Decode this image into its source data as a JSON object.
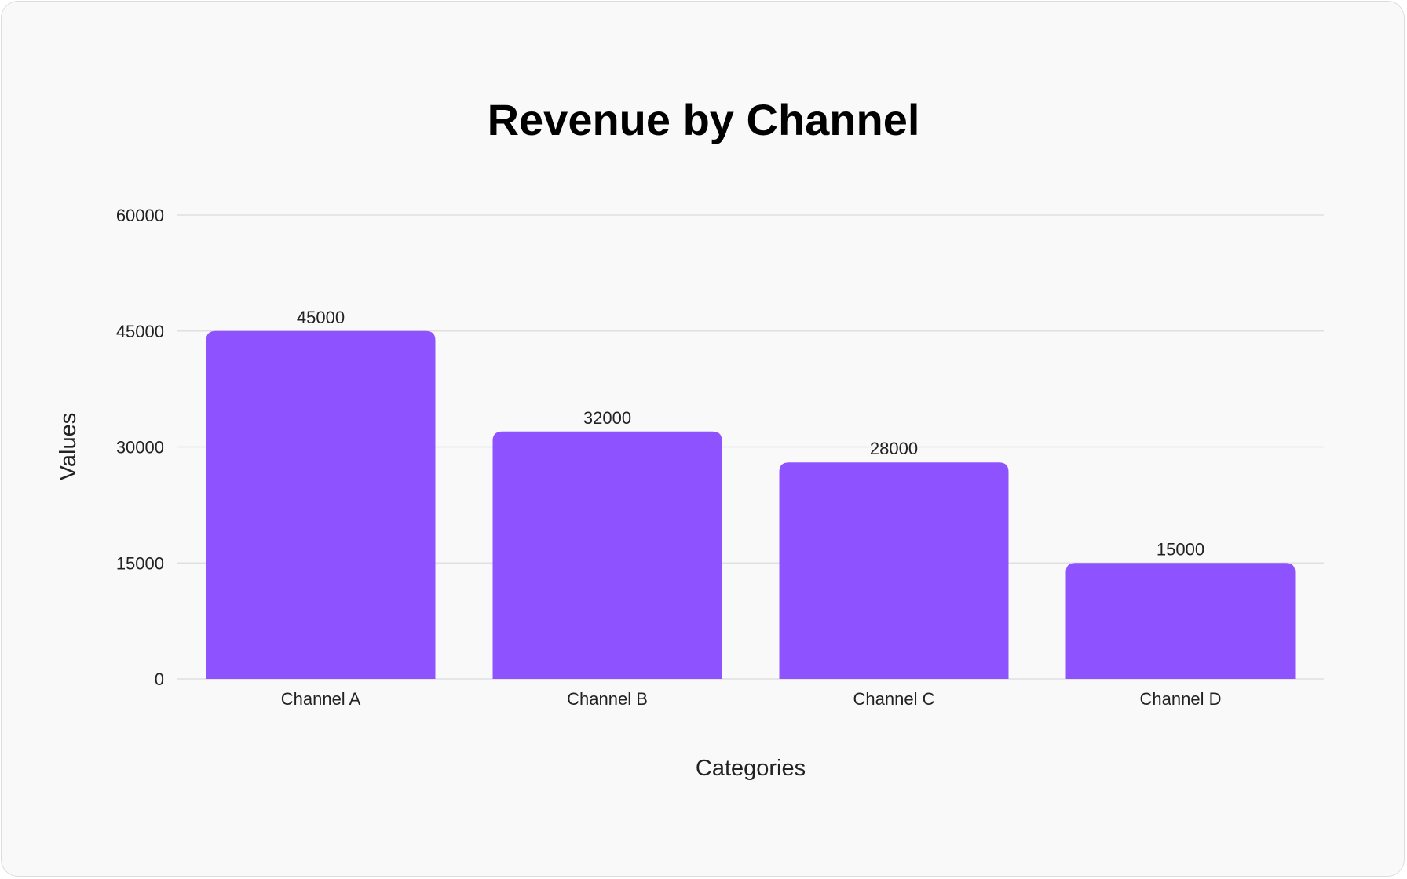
{
  "chart_data": {
    "type": "bar",
    "title": "Revenue by Channel",
    "xlabel": "Categories",
    "ylabel": "Values",
    "categories": [
      "Channel A",
      "Channel B",
      "Channel C",
      "Channel D"
    ],
    "values": [
      45000,
      32000,
      28000,
      15000
    ],
    "data_labels": [
      "45000",
      "32000",
      "28000",
      "15000"
    ],
    "yticks": [
      0,
      15000,
      30000,
      45000,
      60000
    ],
    "ytick_labels": [
      "0",
      "15000",
      "30000",
      "45000",
      "60000"
    ],
    "ylim": [
      0,
      60000
    ],
    "grid": true,
    "legend": "none",
    "colors": {
      "bar": "#8f52ff",
      "grid": "#e0e0e0",
      "background": "#f9f9f9"
    }
  }
}
